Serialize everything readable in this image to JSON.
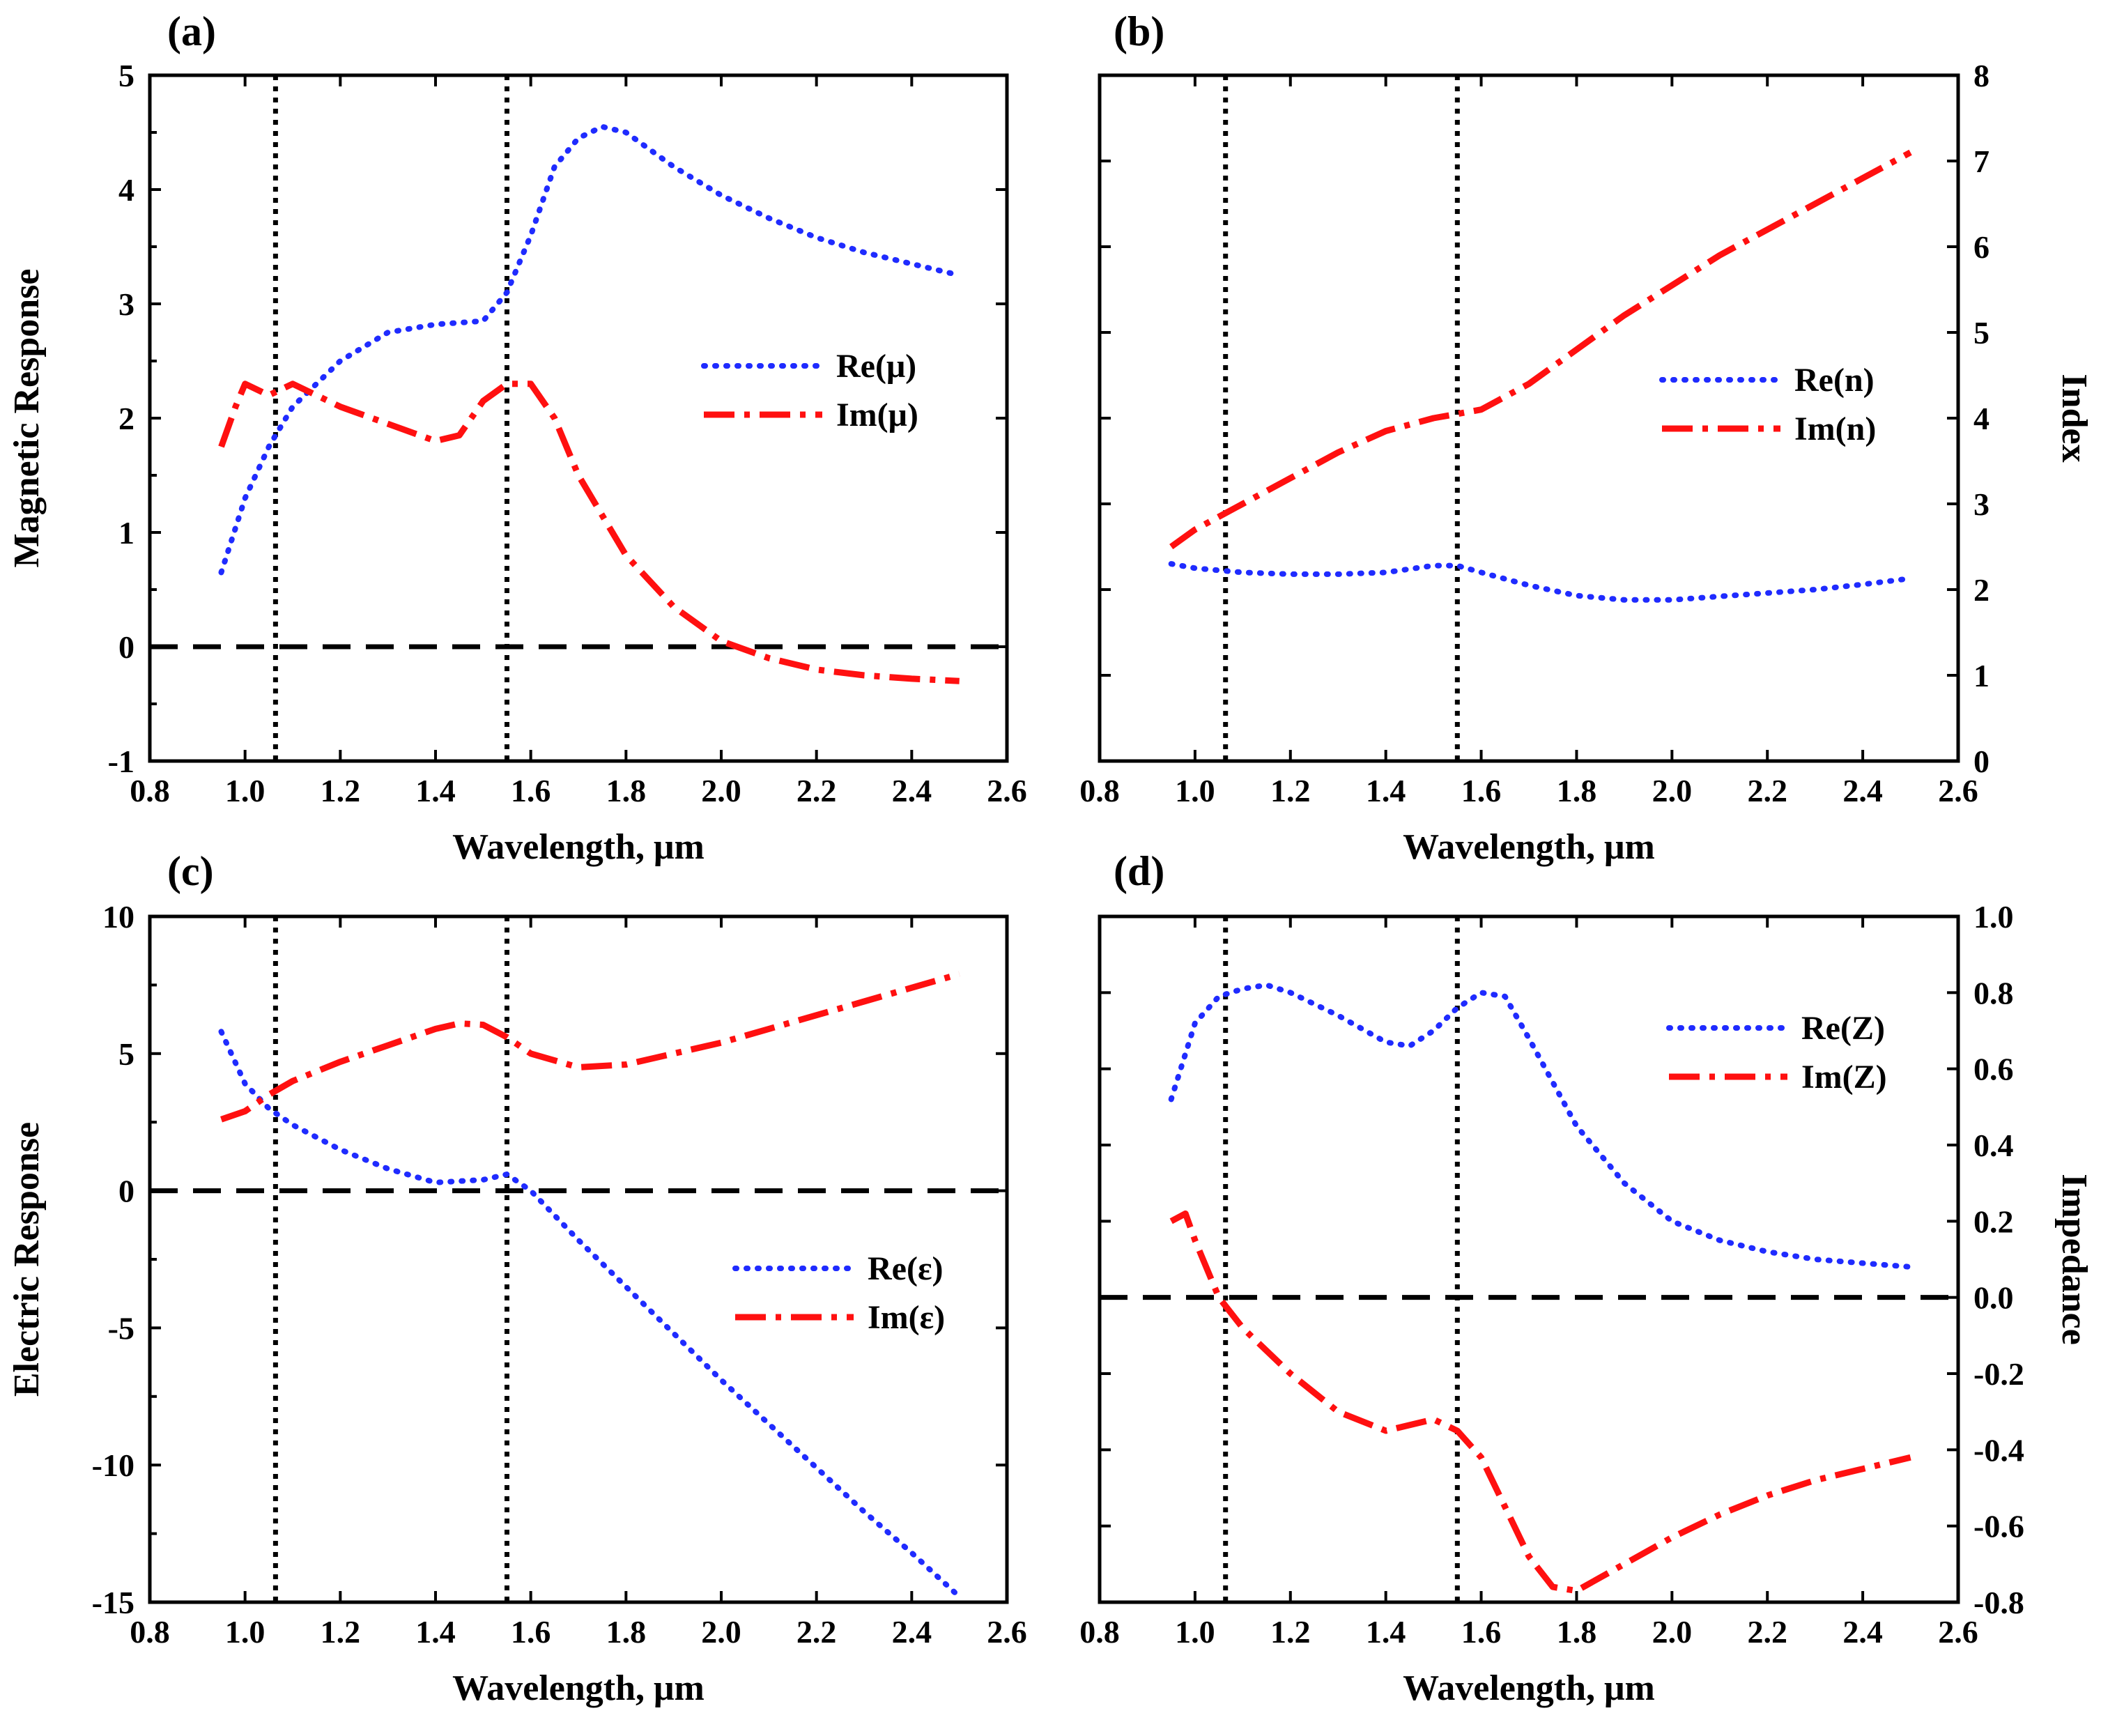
{
  "colors": {
    "re": "#1f2bff",
    "im": "#ff1010",
    "axis": "#000000"
  },
  "chart_data": [
    {
      "type": "line",
      "panel": "(a)",
      "xlabel": "Wavelength, μm",
      "ylabel": "Magnetic Response",
      "ylabel_side": "left",
      "xlim": [
        0.8,
        2.6
      ],
      "ylim": [
        -1,
        5
      ],
      "xticks": [
        0.8,
        1.0,
        1.2,
        1.4,
        1.6,
        1.8,
        2.0,
        2.2,
        2.4,
        2.6
      ],
      "xtick_labels": [
        "0.8",
        "1.0",
        "1.2",
        "1.4",
        "1.6",
        "1.8",
        "2.0",
        "2.2",
        "2.4",
        "2.6"
      ],
      "yticks": [
        -1,
        0,
        1,
        2,
        3,
        4,
        5
      ],
      "ytick_labels": [
        "-1",
        "0",
        "1",
        "2",
        "3",
        "4",
        "5"
      ],
      "yminor": [
        -0.5,
        0.5,
        1.5,
        2.5,
        3.5,
        4.5
      ],
      "zero_line": 0,
      "vlines": [
        1.064,
        1.55
      ],
      "legend_position": "center-right",
      "series": [
        {
          "name": "Re(μ)",
          "style": "dotted",
          "x": [
            0.95,
            1.0,
            1.05,
            1.1,
            1.2,
            1.3,
            1.4,
            1.5,
            1.55,
            1.6,
            1.65,
            1.7,
            1.75,
            1.8,
            1.9,
            2.0,
            2.1,
            2.2,
            2.3,
            2.4,
            2.5
          ],
          "values": [
            0.65,
            1.3,
            1.75,
            2.1,
            2.5,
            2.75,
            2.82,
            2.85,
            3.1,
            3.6,
            4.2,
            4.45,
            4.55,
            4.5,
            4.2,
            3.95,
            3.75,
            3.58,
            3.45,
            3.35,
            3.25
          ]
        },
        {
          "name": "Im(μ)",
          "style": "dashdot",
          "x": [
            0.95,
            0.98,
            1.0,
            1.05,
            1.1,
            1.2,
            1.3,
            1.4,
            1.45,
            1.5,
            1.55,
            1.6,
            1.65,
            1.7,
            1.8,
            1.9,
            2.0,
            2.1,
            2.2,
            2.3,
            2.4,
            2.5
          ],
          "values": [
            1.75,
            2.1,
            2.3,
            2.2,
            2.3,
            2.1,
            1.95,
            1.8,
            1.85,
            2.15,
            2.3,
            2.3,
            2.0,
            1.5,
            0.8,
            0.35,
            0.05,
            -0.1,
            -0.2,
            -0.25,
            -0.28,
            -0.3
          ]
        }
      ],
      "legend": [
        "Re(μ)",
        "Im(μ)"
      ]
    },
    {
      "type": "line",
      "panel": "(b)",
      "xlabel": "Wavelength, μm",
      "ylabel": "Index",
      "ylabel_side": "right",
      "xlim": [
        0.8,
        2.6
      ],
      "ylim": [
        0,
        8
      ],
      "xticks": [
        0.8,
        1.0,
        1.2,
        1.4,
        1.6,
        1.8,
        2.0,
        2.2,
        2.4,
        2.6
      ],
      "xtick_labels": [
        "0.8",
        "1.0",
        "1.2",
        "1.4",
        "1.6",
        "1.8",
        "2.0",
        "2.2",
        "2.4",
        "2.6"
      ],
      "yticks": [
        0,
        1,
        2,
        3,
        4,
        5,
        6,
        7,
        8
      ],
      "ytick_labels": [
        "0",
        "1",
        "2",
        "3",
        "4",
        "5",
        "6",
        "7",
        "8"
      ],
      "yminor": [],
      "zero_line": null,
      "vlines": [
        1.064,
        1.55
      ],
      "legend_position": "center-right",
      "series": [
        {
          "name": "Re(n)",
          "style": "dotted",
          "x": [
            0.95,
            1.0,
            1.1,
            1.2,
            1.3,
            1.4,
            1.5,
            1.55,
            1.6,
            1.7,
            1.8,
            1.9,
            2.0,
            2.1,
            2.2,
            2.3,
            2.4,
            2.5
          ],
          "values": [
            2.3,
            2.25,
            2.2,
            2.18,
            2.18,
            2.2,
            2.28,
            2.28,
            2.2,
            2.05,
            1.93,
            1.88,
            1.88,
            1.92,
            1.96,
            2.0,
            2.06,
            2.13
          ]
        },
        {
          "name": "Im(n)",
          "style": "dashdot",
          "x": [
            0.95,
            1.0,
            1.1,
            1.2,
            1.3,
            1.4,
            1.5,
            1.55,
            1.6,
            1.7,
            1.8,
            1.9,
            2.0,
            2.1,
            2.2,
            2.3,
            2.4,
            2.5
          ],
          "values": [
            2.5,
            2.7,
            3.0,
            3.3,
            3.6,
            3.85,
            4.0,
            4.05,
            4.1,
            4.4,
            4.8,
            5.2,
            5.55,
            5.9,
            6.2,
            6.5,
            6.8,
            7.1
          ]
        }
      ],
      "legend": [
        "Re(n)",
        "Im(n)"
      ]
    },
    {
      "type": "line",
      "panel": "(c)",
      "xlabel": "Wavelength, μm",
      "ylabel": "Electric Response",
      "ylabel_side": "left",
      "xlim": [
        0.8,
        2.6
      ],
      "ylim": [
        -15,
        10
      ],
      "xticks": [
        0.8,
        1.0,
        1.2,
        1.4,
        1.6,
        1.8,
        2.0,
        2.2,
        2.4,
        2.6
      ],
      "xtick_labels": [
        "0.8",
        "1.0",
        "1.2",
        "1.4",
        "1.6",
        "1.8",
        "2.0",
        "2.2",
        "2.4",
        "2.6"
      ],
      "yticks": [
        -15,
        -10,
        -5,
        0,
        5,
        10
      ],
      "ytick_labels": [
        "-15",
        "-10",
        "-5",
        "0",
        "5",
        "10"
      ],
      "yminor": [
        -12.5,
        -7.5,
        -2.5,
        2.5,
        7.5
      ],
      "zero_line": 0,
      "vlines": [
        1.064,
        1.55
      ],
      "legend_position": "bottom-right",
      "series": [
        {
          "name": "Re(ε)",
          "style": "dotted",
          "x": [
            0.95,
            1.0,
            1.05,
            1.1,
            1.2,
            1.3,
            1.4,
            1.5,
            1.55,
            1.6,
            1.7,
            1.8,
            1.9,
            2.0,
            2.1,
            2.2,
            2.3,
            2.4,
            2.5
          ],
          "values": [
            5.8,
            3.9,
            3.0,
            2.4,
            1.5,
            0.8,
            0.3,
            0.4,
            0.6,
            0.0,
            -1.8,
            -3.5,
            -5.2,
            -6.9,
            -8.5,
            -10.1,
            -11.7,
            -13.2,
            -14.8
          ]
        },
        {
          "name": "Im(ε)",
          "style": "dashdot",
          "x": [
            0.95,
            1.0,
            1.05,
            1.1,
            1.2,
            1.3,
            1.4,
            1.45,
            1.5,
            1.55,
            1.6,
            1.7,
            1.8,
            1.9,
            2.0,
            2.1,
            2.2,
            2.3,
            2.4,
            2.5
          ],
          "values": [
            2.6,
            2.9,
            3.5,
            4.0,
            4.7,
            5.3,
            5.9,
            6.1,
            6.05,
            5.6,
            5.0,
            4.5,
            4.6,
            5.0,
            5.4,
            5.9,
            6.4,
            6.9,
            7.4,
            7.9
          ]
        }
      ],
      "legend": [
        "Re(ε)",
        "Im(ε)"
      ]
    },
    {
      "type": "line",
      "panel": "(d)",
      "xlabel": "Wavelength, μm",
      "ylabel": "Impedance",
      "ylabel_side": "right",
      "xlim": [
        0.8,
        2.6
      ],
      "ylim": [
        -0.8,
        1.0
      ],
      "xticks": [
        0.8,
        1.0,
        1.2,
        1.4,
        1.6,
        1.8,
        2.0,
        2.2,
        2.4,
        2.6
      ],
      "xtick_labels": [
        "0.8",
        "1.0",
        "1.2",
        "1.4",
        "1.6",
        "1.8",
        "2.0",
        "2.2",
        "2.4",
        "2.6"
      ],
      "yticks": [
        -0.8,
        -0.6,
        -0.4,
        -0.2,
        0.0,
        0.2,
        0.4,
        0.6,
        0.8,
        1.0
      ],
      "ytick_labels": [
        "-0.8",
        "-0.6",
        "-0.4",
        "-0.2",
        "0.0",
        "0.2",
        "0.4",
        "0.6",
        "0.8",
        "1.0"
      ],
      "yminor": [],
      "zero_line": 0,
      "vlines": [
        1.064,
        1.55
      ],
      "legend_position": "top-right",
      "series": [
        {
          "name": "Re(Z)",
          "style": "dotted",
          "x": [
            0.95,
            1.0,
            1.05,
            1.1,
            1.15,
            1.2,
            1.3,
            1.4,
            1.45,
            1.5,
            1.55,
            1.6,
            1.65,
            1.7,
            1.8,
            1.9,
            2.0,
            2.1,
            2.2,
            2.3,
            2.4,
            2.5
          ],
          "values": [
            0.52,
            0.72,
            0.79,
            0.81,
            0.82,
            0.8,
            0.74,
            0.67,
            0.66,
            0.7,
            0.76,
            0.8,
            0.79,
            0.68,
            0.45,
            0.3,
            0.2,
            0.15,
            0.12,
            0.1,
            0.09,
            0.08
          ]
        },
        {
          "name": "Im(Z)",
          "style": "dashdot",
          "x": [
            0.95,
            0.98,
            1.0,
            1.05,
            1.1,
            1.2,
            1.3,
            1.4,
            1.5,
            1.55,
            1.6,
            1.65,
            1.7,
            1.75,
            1.8,
            1.9,
            2.0,
            2.1,
            2.2,
            2.3,
            2.4,
            2.5
          ],
          "values": [
            0.2,
            0.22,
            0.15,
            0.0,
            -0.08,
            -0.2,
            -0.3,
            -0.35,
            -0.32,
            -0.35,
            -0.42,
            -0.55,
            -0.68,
            -0.76,
            -0.77,
            -0.7,
            -0.63,
            -0.57,
            -0.52,
            -0.48,
            -0.45,
            -0.42
          ]
        }
      ],
      "legend": [
        "Re(Z)",
        "Im(Z)"
      ]
    }
  ]
}
